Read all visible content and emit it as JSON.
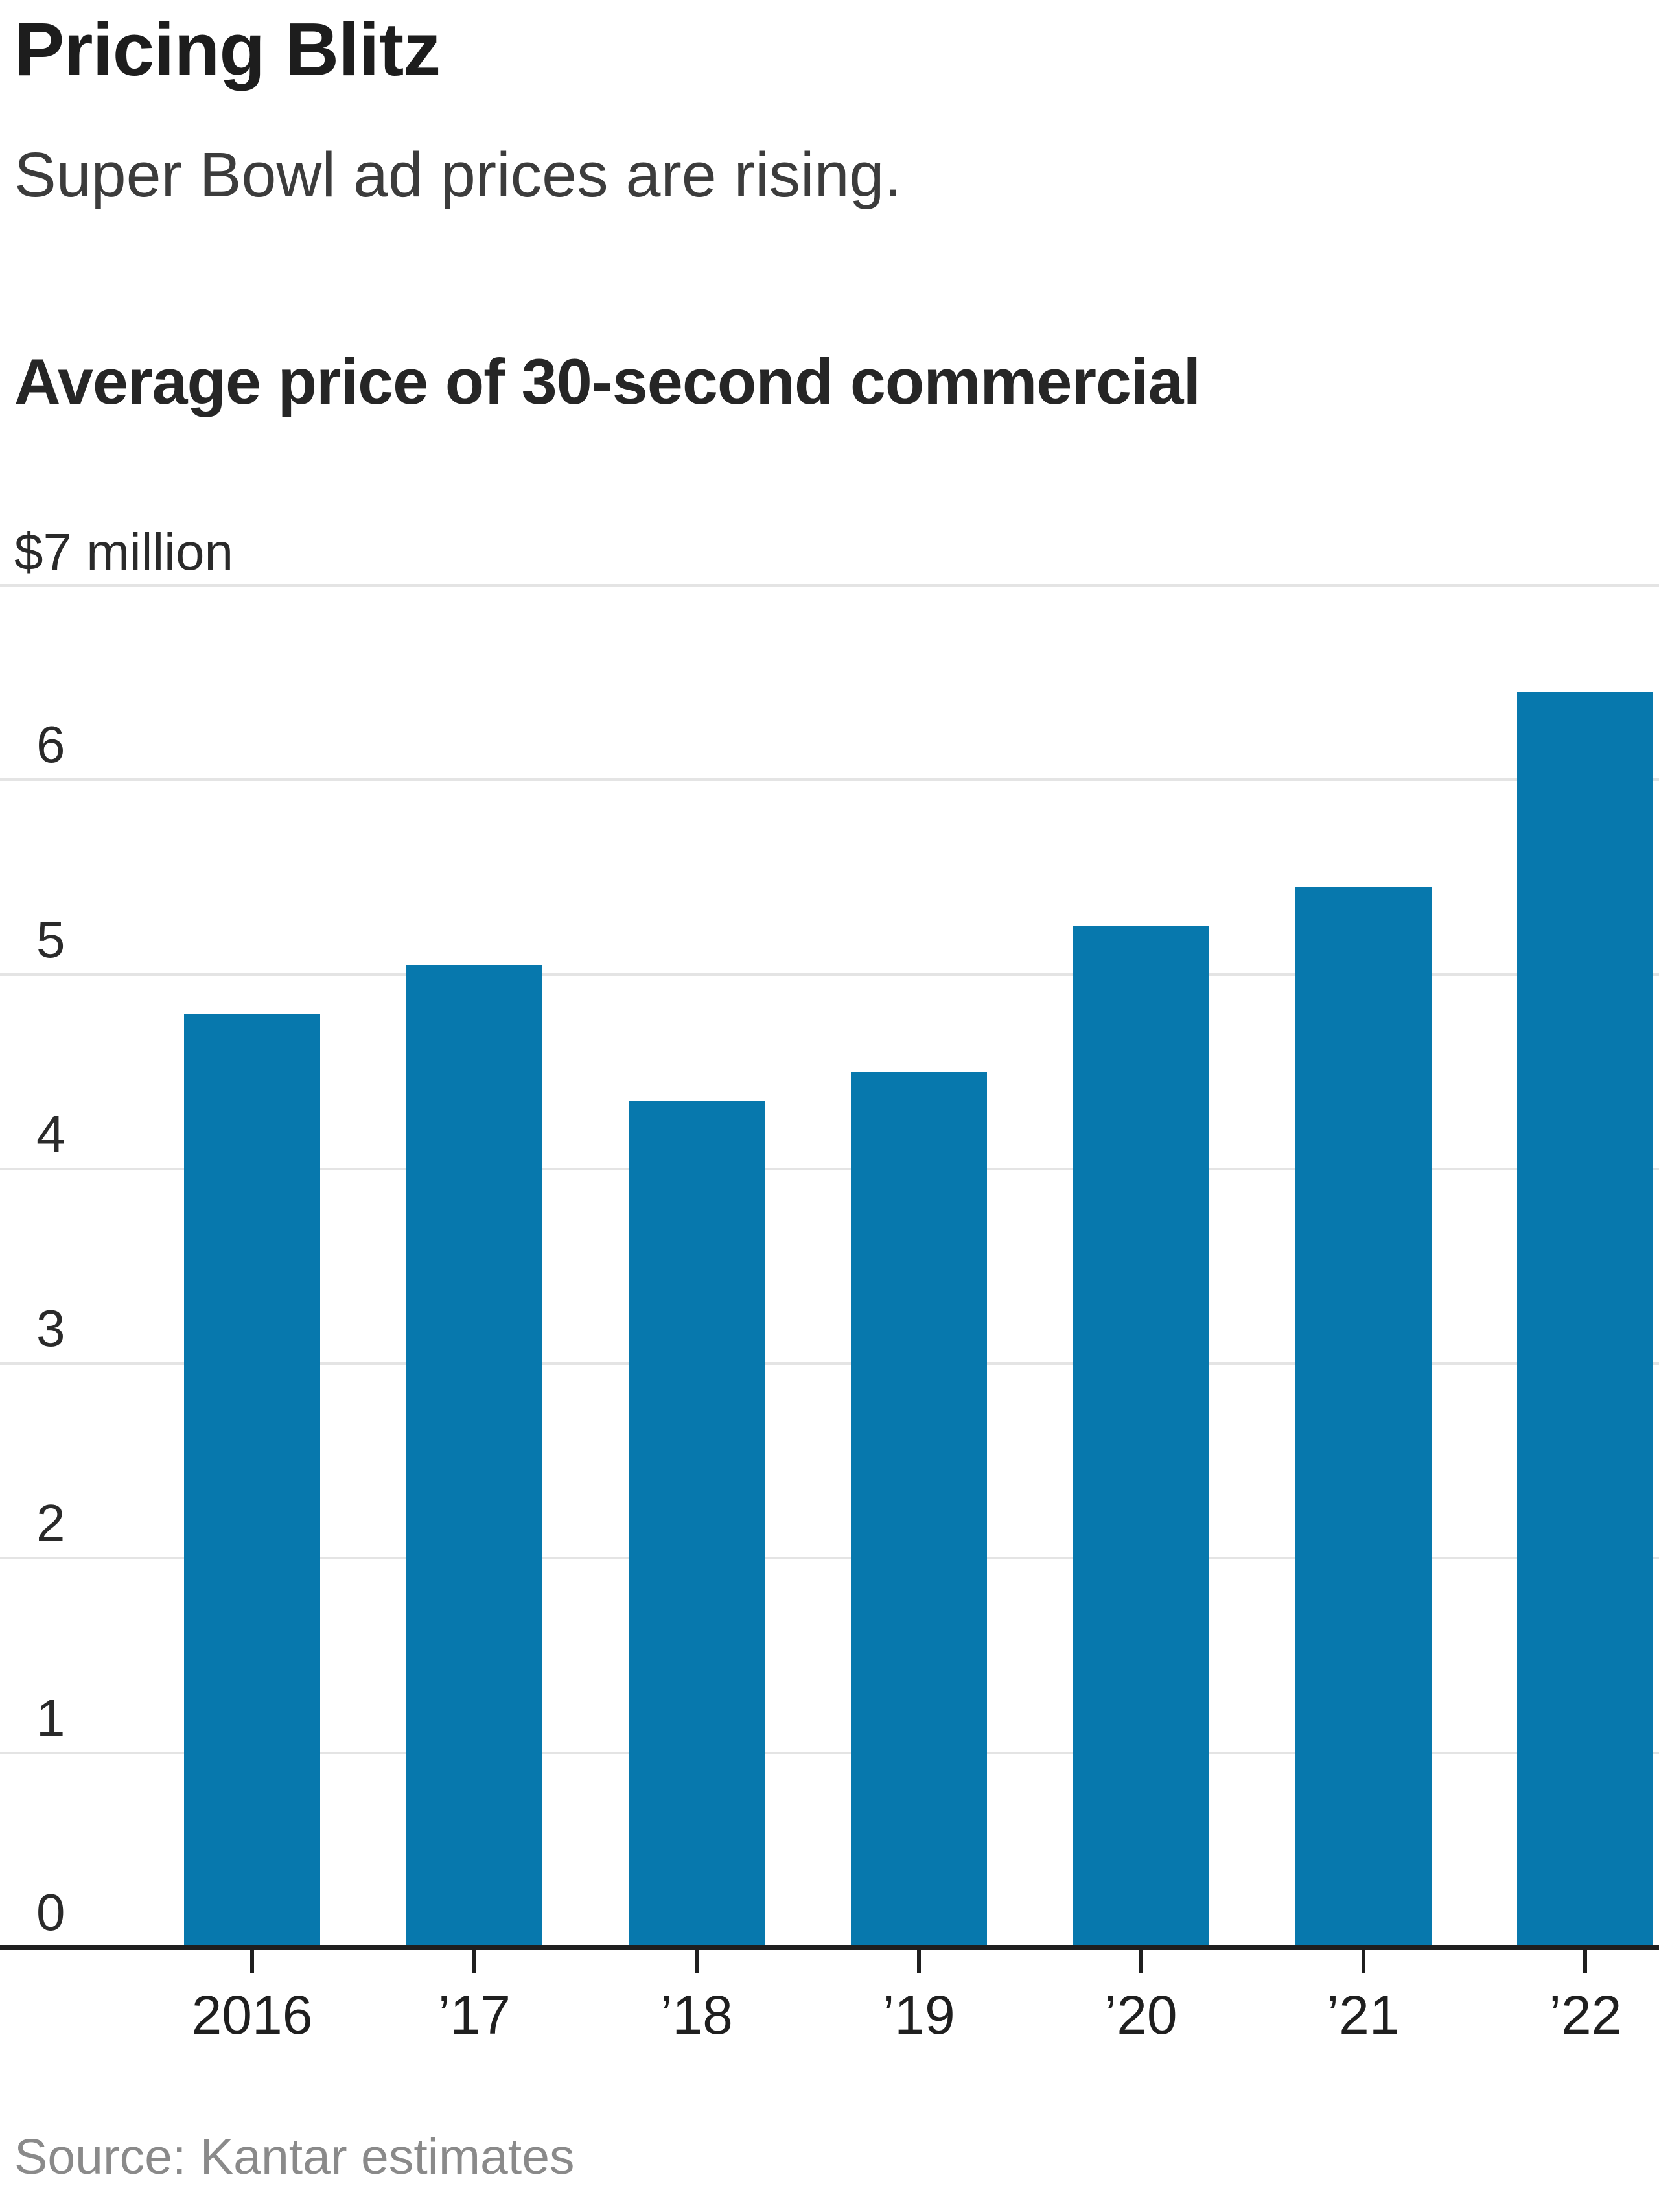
{
  "header": {
    "title": "Pricing Blitz",
    "subtitle": "Super Bowl ad prices are rising.",
    "measure_label": "Average price of 30-second commercial"
  },
  "chart_data": {
    "type": "bar",
    "title": "Average price of 30-second commercial",
    "categories": [
      "2016",
      "’17",
      "’18",
      "’19",
      "’20",
      "’21",
      "’22"
    ],
    "values": [
      4.8,
      5.05,
      4.35,
      4.5,
      5.25,
      5.45,
      6.45
    ],
    "y_top_label": "$7 million",
    "y_ticks": [
      0,
      1,
      2,
      3,
      4,
      5,
      6
    ],
    "ylim": [
      0,
      7
    ],
    "grid": true,
    "legend": false,
    "bar_color": "#0778ad",
    "gridline_color": "#e4e4e4",
    "axis_color": "#1f1f1f"
  },
  "footer": {
    "source": "Source: Kantar estimates"
  }
}
